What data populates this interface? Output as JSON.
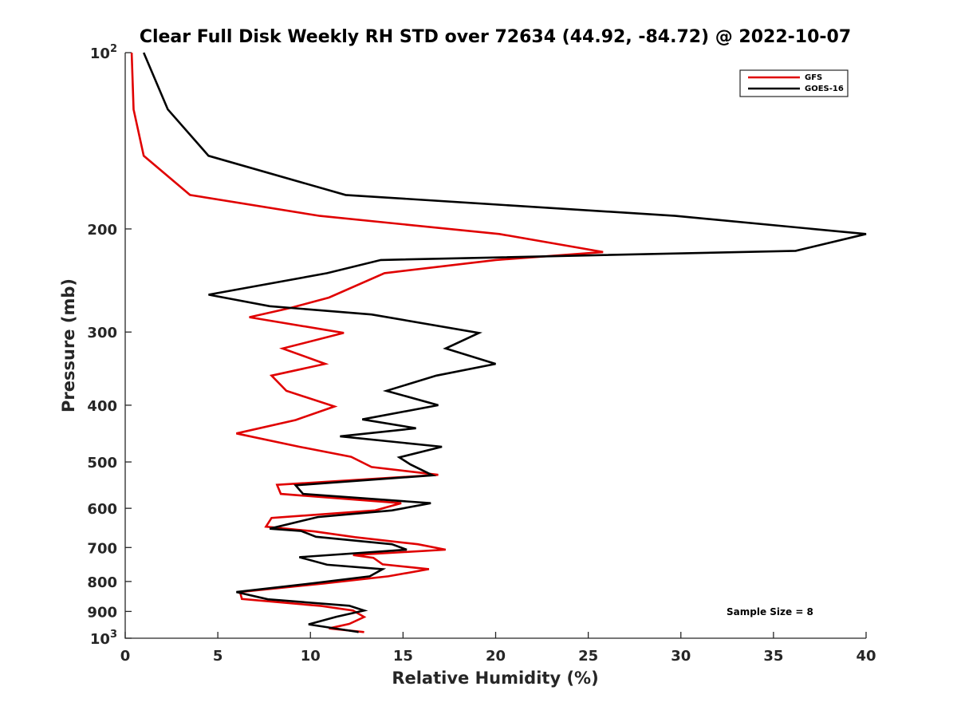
{
  "chart_data": {
    "type": "line",
    "title": "Clear Full Disk Weekly RH STD over 72634 (44.92, -84.72) @ 2022-10-07",
    "xlabel": "Relative Humidity (%)",
    "ylabel": "Pressure (mb)",
    "xlim": [
      0,
      40
    ],
    "ylim": [
      100,
      1000
    ],
    "yscale": "log",
    "y_reversed": true,
    "grid": false,
    "legend_position": "top-right",
    "x_ticks": [
      "0",
      "5",
      "10",
      "15",
      "20",
      "25",
      "30",
      "35",
      "40"
    ],
    "y_ticks": [
      {
        "value": 100,
        "base": "10",
        "exp": "2"
      },
      {
        "value": 200,
        "label": "200"
      },
      {
        "value": 300,
        "label": "300"
      },
      {
        "value": 400,
        "label": "400"
      },
      {
        "value": 500,
        "label": "500"
      },
      {
        "value": 600,
        "label": "600"
      },
      {
        "value": 700,
        "label": "700"
      },
      {
        "value": 800,
        "label": "800"
      },
      {
        "value": 900,
        "label": "900"
      },
      {
        "value": 1000,
        "base": "10",
        "exp": "3"
      }
    ],
    "series": [
      {
        "name": "GFS",
        "color": "#e00000",
        "points": [
          [
            0.35,
            100
          ],
          [
            0.45,
            125
          ],
          [
            1.0,
            150
          ],
          [
            3.5,
            175
          ],
          [
            10.5,
            190
          ],
          [
            20.2,
            204
          ],
          [
            25.8,
            219
          ],
          [
            20.0,
            226
          ],
          [
            14.0,
            238
          ],
          [
            11.0,
            262
          ],
          [
            8.9,
            273
          ],
          [
            6.7,
            283
          ],
          [
            11.8,
            301
          ],
          [
            8.5,
            320
          ],
          [
            10.8,
            340
          ],
          [
            7.9,
            356
          ],
          [
            8.7,
            378
          ],
          [
            11.3,
            402
          ],
          [
            9.2,
            424
          ],
          [
            6.0,
            447
          ],
          [
            9.4,
            471
          ],
          [
            12.2,
            490
          ],
          [
            13.3,
            510
          ],
          [
            16.9,
            526
          ],
          [
            8.2,
            547
          ],
          [
            8.4,
            567
          ],
          [
            14.9,
            588
          ],
          [
            13.5,
            605
          ],
          [
            7.9,
            623
          ],
          [
            7.6,
            645
          ],
          [
            10.2,
            657
          ],
          [
            12.4,
            672
          ],
          [
            15.8,
            691
          ],
          [
            17.3,
            706
          ],
          [
            12.3,
            721
          ],
          [
            13.4,
            729
          ],
          [
            13.9,
            748
          ],
          [
            16.4,
            762
          ],
          [
            14.2,
            784
          ],
          [
            10.8,
            806
          ],
          [
            6.2,
            834
          ],
          [
            6.3,
            857
          ],
          [
            10.6,
            881
          ],
          [
            12.3,
            897
          ],
          [
            12.9,
            920
          ],
          [
            12.1,
            945
          ],
          [
            11.0,
            962
          ],
          [
            12.9,
            976
          ]
        ]
      },
      {
        "name": "GOES-16",
        "color": "#000000",
        "points": [
          [
            1.0,
            100
          ],
          [
            2.3,
            125
          ],
          [
            4.5,
            150
          ],
          [
            11.9,
            175
          ],
          [
            29.7,
            190
          ],
          [
            40.0,
            204
          ],
          [
            36.2,
            218
          ],
          [
            13.8,
            226
          ],
          [
            10.9,
            238
          ],
          [
            4.5,
            259
          ],
          [
            7.8,
            271
          ],
          [
            13.3,
            280
          ],
          [
            19.1,
            301
          ],
          [
            17.3,
            320
          ],
          [
            20.0,
            340
          ],
          [
            16.8,
            356
          ],
          [
            14.1,
            378
          ],
          [
            16.9,
            400
          ],
          [
            12.8,
            423
          ],
          [
            15.7,
            438
          ],
          [
            11.6,
            452
          ],
          [
            17.1,
            471
          ],
          [
            14.8,
            491
          ],
          [
            15.4,
            505
          ],
          [
            16.6,
            527
          ],
          [
            9.2,
            548
          ],
          [
            9.6,
            567
          ],
          [
            16.5,
            588
          ],
          [
            14.4,
            605
          ],
          [
            10.4,
            621
          ],
          [
            7.8,
            650
          ],
          [
            9.5,
            656
          ],
          [
            10.3,
            671
          ],
          [
            14.4,
            691
          ],
          [
            15.2,
            706
          ],
          [
            9.4,
            727
          ],
          [
            10.9,
            749
          ],
          [
            13.9,
            762
          ],
          [
            13.2,
            784
          ],
          [
            10.2,
            805
          ],
          [
            6.0,
            834
          ],
          [
            7.7,
            858
          ],
          [
            12.1,
            880
          ],
          [
            12.9,
            897
          ],
          [
            11.4,
            919
          ],
          [
            9.9,
            947
          ],
          [
            12.5,
            975
          ],
          [
            12.6,
            976
          ]
        ]
      }
    ],
    "annotations": [
      "Sample Size = 8"
    ]
  }
}
